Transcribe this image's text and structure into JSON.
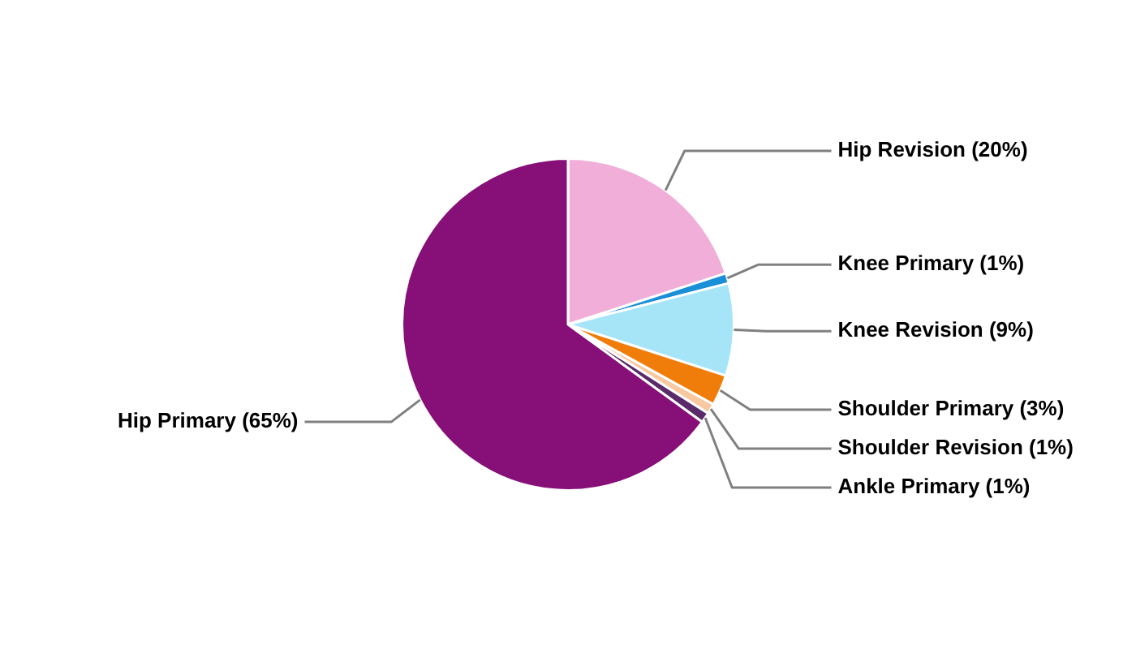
{
  "chart_data": {
    "type": "pie",
    "categories": [
      "Hip Revision",
      "Knee Primary",
      "Knee Revision",
      "Shoulder Primary",
      "Shoulder Revision",
      "Ankle Primary",
      "Hip Primary"
    ],
    "values": [
      20,
      1,
      9,
      3,
      1,
      1,
      65
    ],
    "value_labels": [
      "(20%)",
      "(1%)",
      "(9%)",
      "(3%)",
      "(1%)",
      "(1%)",
      "(65%)"
    ],
    "colors": [
      "#f0aed8",
      "#1a8fd8",
      "#a6e4f8",
      "#f07d0a",
      "#f8c8a0",
      "#5a2a6a",
      "#870f78"
    ],
    "legend": false
  }
}
